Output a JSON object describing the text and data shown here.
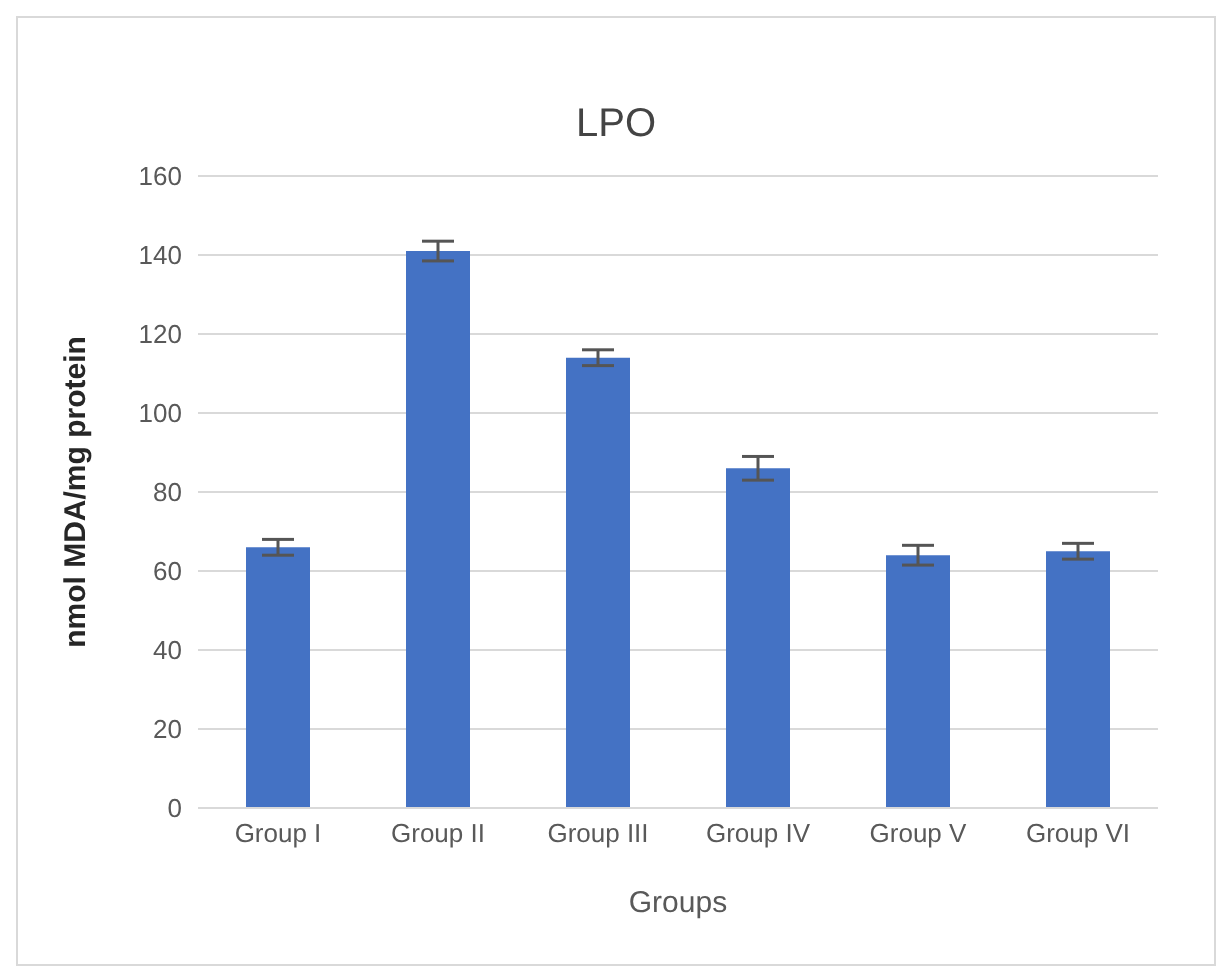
{
  "chart_data": {
    "type": "bar",
    "title": "LPO",
    "xlabel": "Groups",
    "ylabel": "nmol MDA/mg protein",
    "categories": [
      "Group I",
      "Group II",
      "Group III",
      "Group IV",
      "Group V",
      "Group VI"
    ],
    "values": [
      66,
      141,
      114,
      86,
      64,
      65
    ],
    "errors": [
      2,
      2.5,
      2,
      3,
      2.5,
      2
    ],
    "color": "#4472c4",
    "ylim": [
      0,
      160
    ],
    "yticks": [
      0,
      20,
      40,
      60,
      80,
      100,
      120,
      140,
      160
    ],
    "grid": "y"
  }
}
